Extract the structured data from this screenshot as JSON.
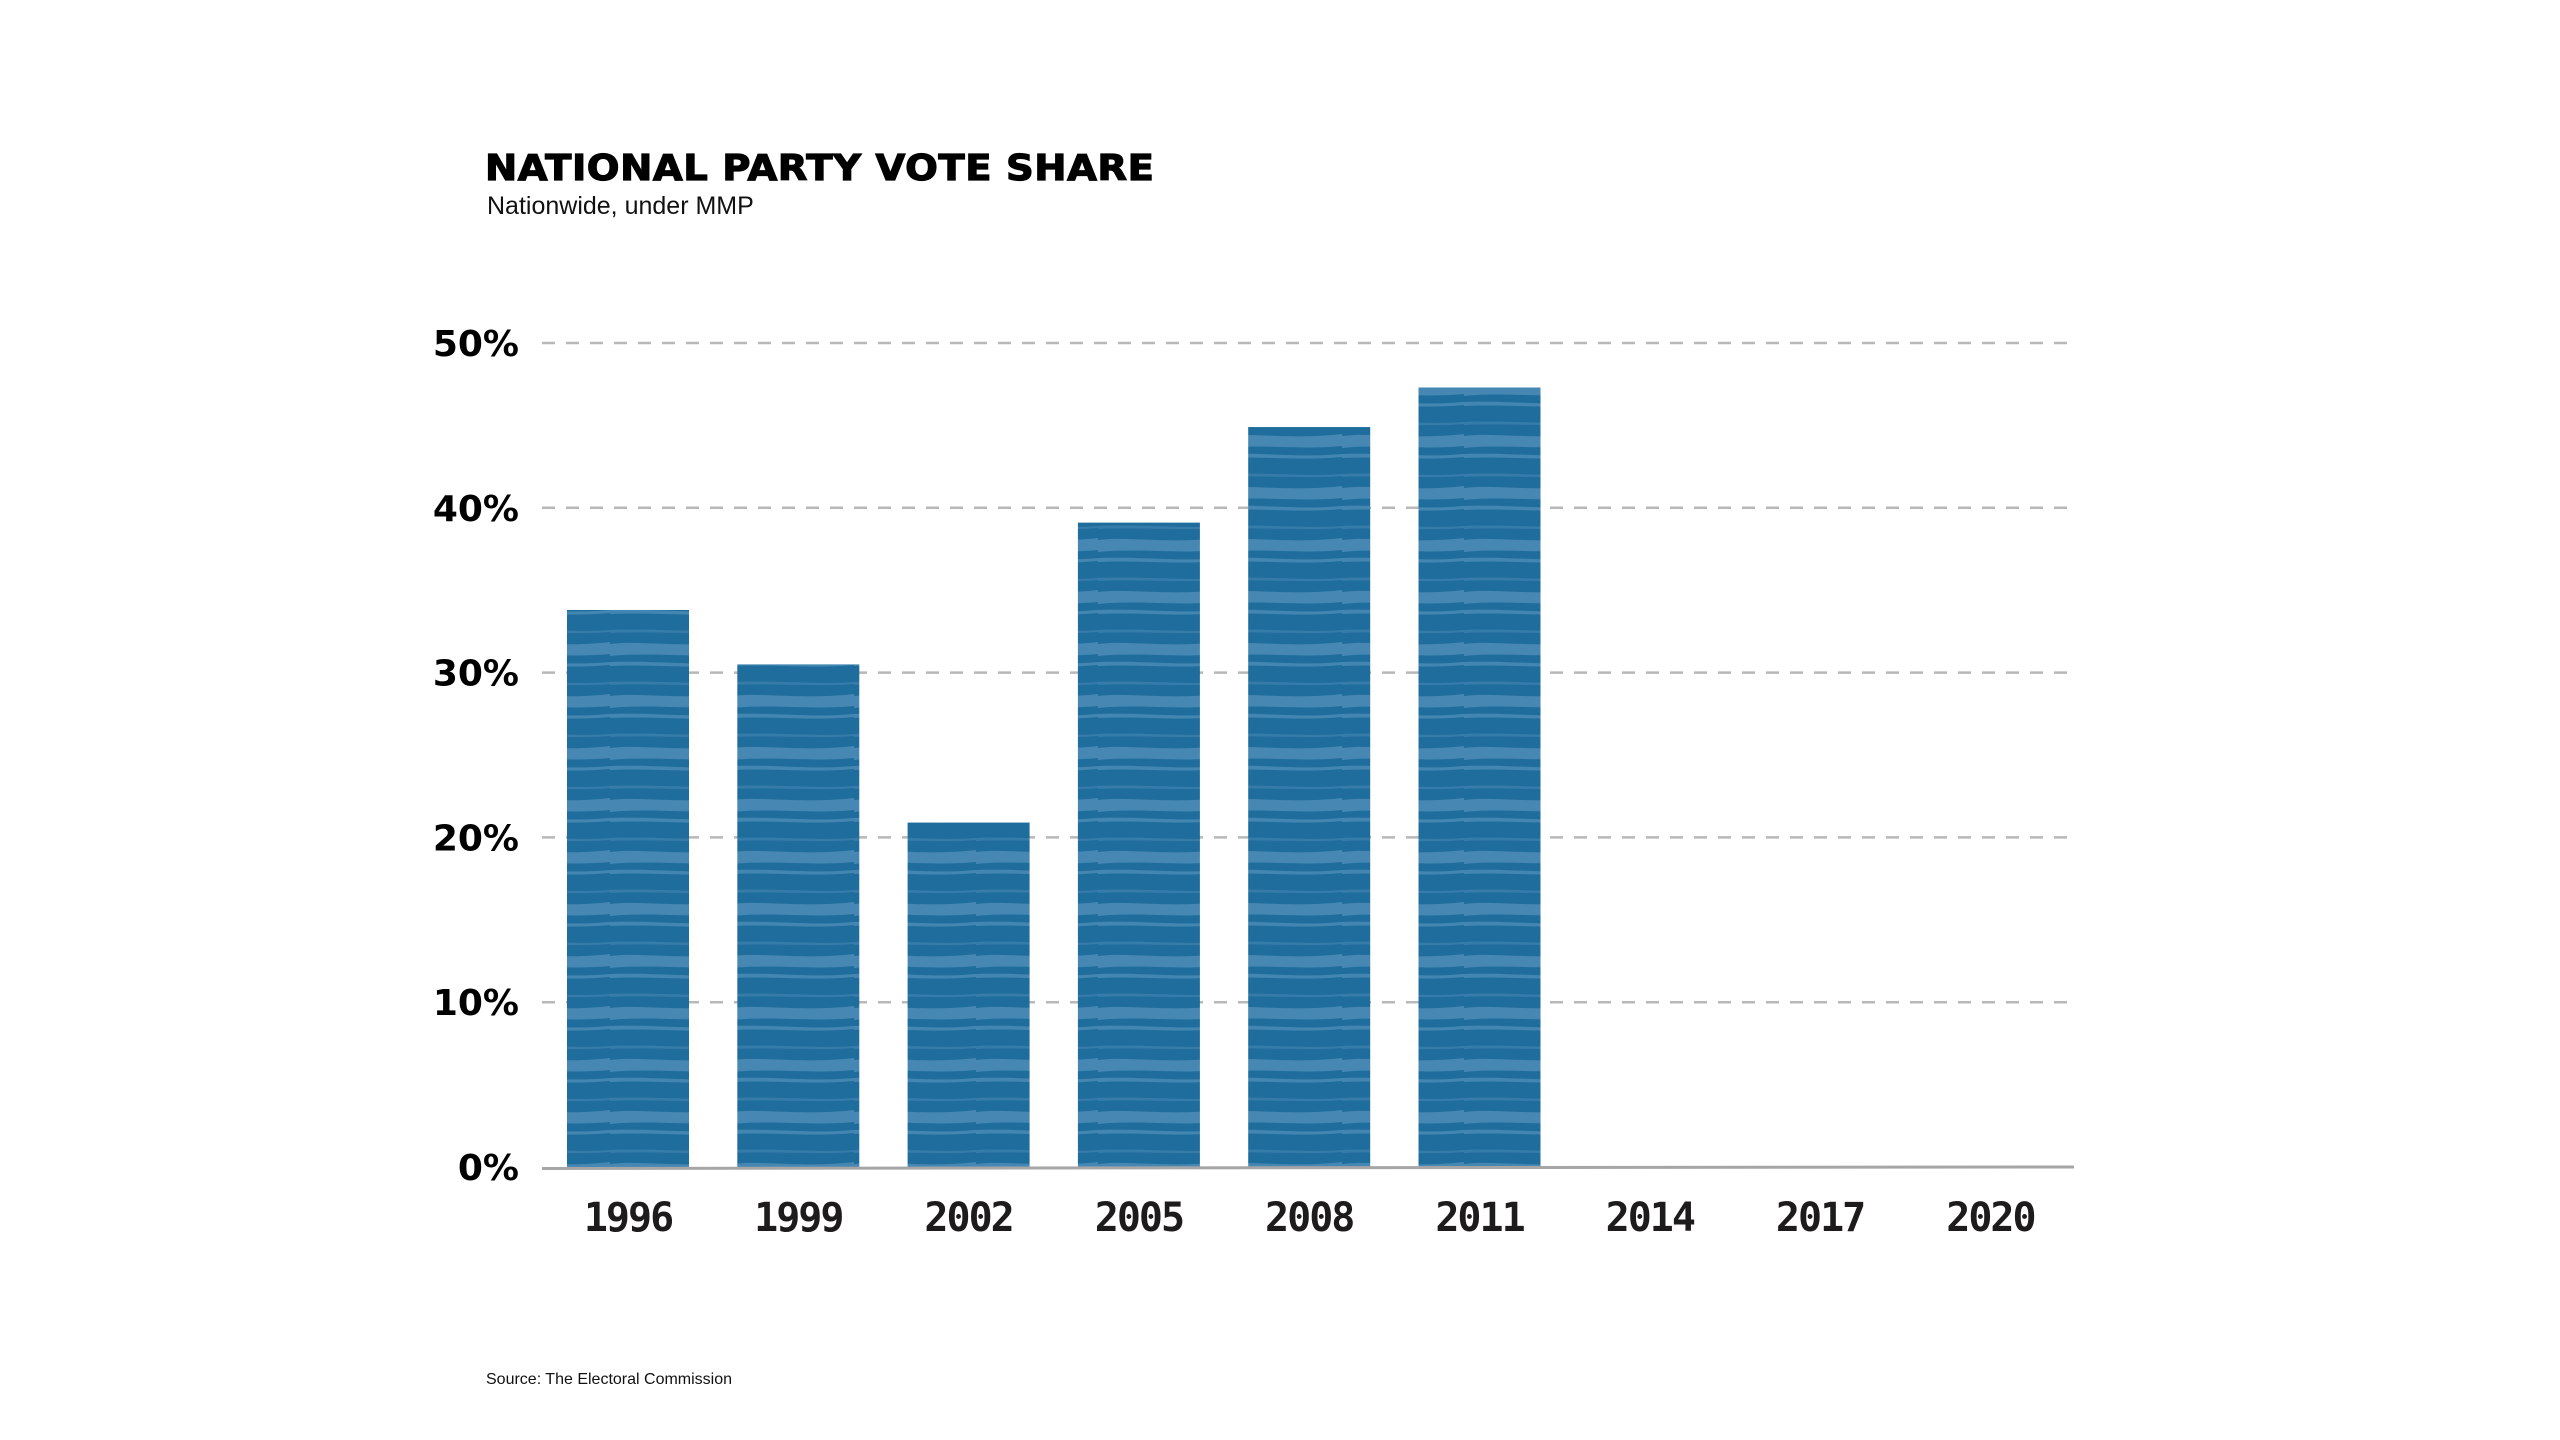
{
  "header": {
    "title": "NATIONAL PARTY VOTE SHARE",
    "subtitle": "Nationwide, under MMP"
  },
  "footer": {
    "source": "Source: The Electoral Commission"
  },
  "colors": {
    "bar": "#1f6d9c",
    "bar_streak": "#4d8cb8",
    "grid": "#b8b8b8",
    "axis": "#a6a6a6",
    "text": "#000000"
  },
  "chart_data": {
    "type": "bar",
    "title": "NATIONAL PARTY VOTE SHARE",
    "subtitle": "Nationwide, under MMP",
    "xlabel": "",
    "ylabel": "",
    "categories": [
      "1996",
      "1999",
      "2002",
      "2005",
      "2008",
      "2011",
      "2014",
      "2017",
      "2020"
    ],
    "values": [
      33.8,
      30.5,
      20.9,
      39.1,
      44.9,
      47.3,
      null,
      null,
      null
    ],
    "ylim": [
      0,
      50
    ],
    "yticks": [
      0,
      10,
      20,
      30,
      40,
      50
    ],
    "ytick_labels": [
      "0%",
      "10%",
      "20%",
      "30%",
      "40%",
      "50%"
    ],
    "grid": true,
    "legend": "none",
    "source": "Source: The Electoral Commission"
  }
}
